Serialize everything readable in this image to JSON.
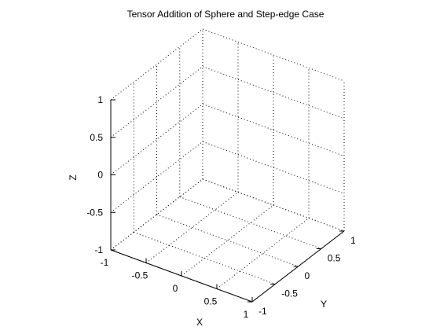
{
  "chart_data": {
    "type": "scatter",
    "title": "Tensor Addition of Sphere and Step-edge Case",
    "xlabel": "X",
    "ylabel": "Y",
    "zlabel": "Z",
    "xlim": [
      -1,
      1
    ],
    "ylim": [
      -1,
      1
    ],
    "zlim": [
      -1,
      1
    ],
    "xticks": [
      -1,
      -0.5,
      0,
      0.5,
      1
    ],
    "yticks": [
      -1,
      -0.5,
      0,
      0.5,
      1
    ],
    "zticks": [
      -1,
      -0.5,
      0,
      0.5,
      1
    ],
    "xtick_labels": [
      "-1",
      "-0.5",
      "0",
      "0.5",
      "1"
    ],
    "ytick_labels": [
      "-1",
      "-0.5",
      "0",
      "0.5",
      "1"
    ],
    "ztick_labels": [
      "-1",
      "-0.5",
      "0",
      "0.5",
      "1"
    ],
    "grid": true,
    "view": "3d",
    "series": [],
    "colors": {
      "axis": "#000000",
      "grid": "#000000",
      "background": "#ffffff"
    }
  }
}
